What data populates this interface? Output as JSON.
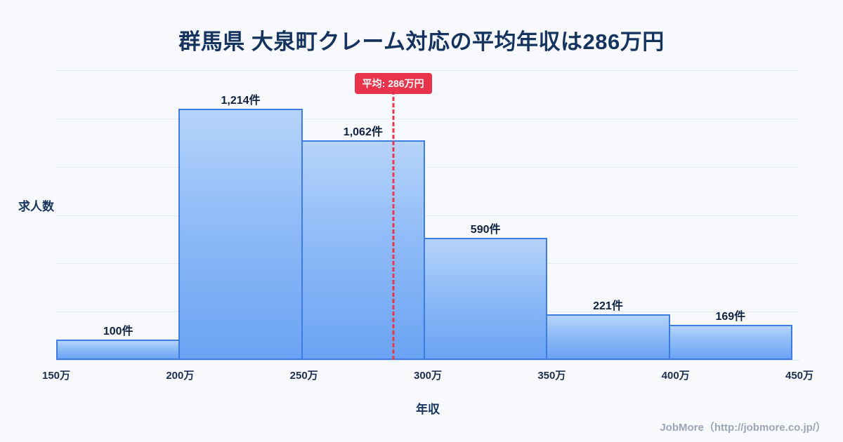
{
  "title": "群馬県 大泉町クレーム対応の平均年収は286万円",
  "y_axis_label": "求人数",
  "x_axis_label": "年収",
  "footer": "JobMore（http://jobmore.co.jp/）",
  "colors": {
    "background": "#f7f9fd",
    "title_text": "#14335f",
    "bar_fill_top": "#b6d4fa",
    "bar_fill_bottom": "#6ba3f3",
    "bar_border": "#3d7ce5",
    "mean_red": "#e8344a",
    "gridline": "#e5ebf4",
    "footer_text": "#9aa6b6"
  },
  "chart_data": {
    "type": "bar",
    "subtype": "histogram",
    "title": "群馬県 大泉町クレーム対応の平均年収は286万円",
    "xlabel": "年収",
    "ylabel": "求人数",
    "bin_edges_labels": [
      "150万",
      "200万",
      "250万",
      "300万",
      "350万",
      "400万",
      "450万"
    ],
    "bin_edges_values": [
      150,
      200,
      250,
      300,
      350,
      400,
      450
    ],
    "categories": [
      "150万-200万",
      "200万-250万",
      "250万-300万",
      "300万-350万",
      "350万-400万",
      "400万-450万"
    ],
    "values": [
      100,
      1214,
      1062,
      590,
      221,
      169
    ],
    "value_labels": [
      "100件",
      "1,214件",
      "1,062件",
      "590件",
      "221件",
      "169件"
    ],
    "mean": 286,
    "mean_label": "平均: 286万円",
    "x_range": [
      150,
      450
    ],
    "ylim": [
      0,
      1400
    ],
    "grid": true,
    "gridline_count": 6,
    "legend_position": "none"
  }
}
